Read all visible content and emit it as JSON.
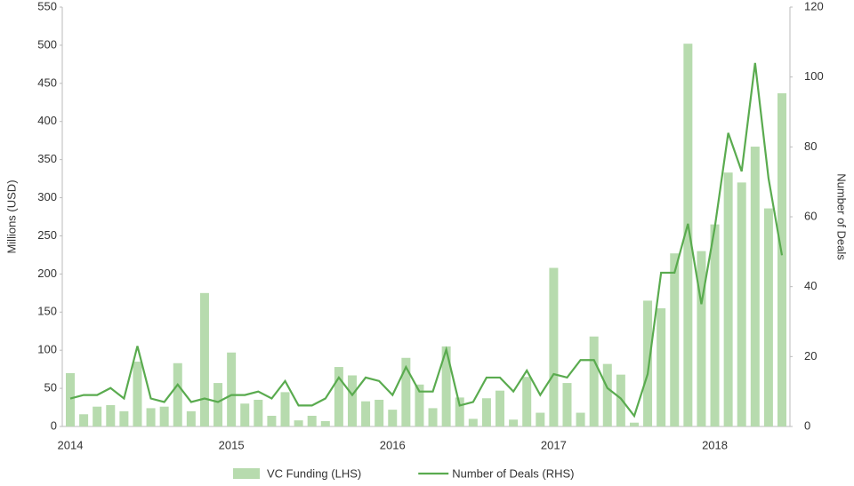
{
  "chart_data": {
    "type": "bar-line",
    "categories": [
      "2014",
      null,
      null,
      null,
      null,
      null,
      null,
      null,
      null,
      null,
      null,
      null,
      "2015",
      null,
      null,
      null,
      null,
      null,
      null,
      null,
      null,
      null,
      null,
      null,
      "2016",
      null,
      null,
      null,
      null,
      null,
      null,
      null,
      null,
      null,
      null,
      null,
      "2017",
      null,
      null,
      null,
      null,
      null,
      null,
      null,
      null,
      null,
      null,
      null,
      "2018",
      null,
      null,
      null,
      null,
      null
    ],
    "series": [
      {
        "name": "VC Funding (LHS)",
        "type": "bar",
        "color": "#b7dbae",
        "values": [
          70,
          16,
          26,
          28,
          20,
          85,
          24,
          26,
          83,
          20,
          175,
          57,
          97,
          30,
          35,
          14,
          45,
          8,
          14,
          7,
          78,
          67,
          33,
          35,
          22,
          90,
          55,
          24,
          105,
          38,
          10,
          37,
          47,
          9,
          65,
          18,
          208,
          57,
          18,
          118,
          82,
          68,
          5,
          165,
          155,
          227,
          502,
          230,
          265,
          333,
          320,
          367,
          286,
          437
        ]
      },
      {
        "name": "Number of Deals (RHS)",
        "type": "line",
        "axis": "y2",
        "color": "#5aab4f",
        "values": [
          8,
          9,
          9,
          11,
          8,
          23,
          8,
          7,
          12,
          7,
          8,
          7,
          9,
          9,
          10,
          8,
          13,
          6,
          6,
          8,
          14,
          9,
          14,
          13,
          9,
          17,
          10,
          10,
          22,
          6,
          7,
          14,
          14,
          10,
          16,
          9,
          15,
          14,
          19,
          19,
          11,
          8,
          3,
          15,
          44,
          44,
          58,
          35,
          57,
          84,
          73,
          104,
          71,
          49
        ]
      }
    ],
    "y_label": "Millions (USD)",
    "y2_label": "Number of Deals",
    "ylim": [
      0,
      550
    ],
    "yticks": [
      0,
      50,
      100,
      150,
      200,
      250,
      300,
      350,
      400,
      450,
      500,
      550
    ],
    "y2lim": [
      0,
      120
    ],
    "y2ticks": [
      0,
      20,
      40,
      60,
      80,
      100,
      120
    ],
    "grid": false,
    "legend": "bottom"
  }
}
